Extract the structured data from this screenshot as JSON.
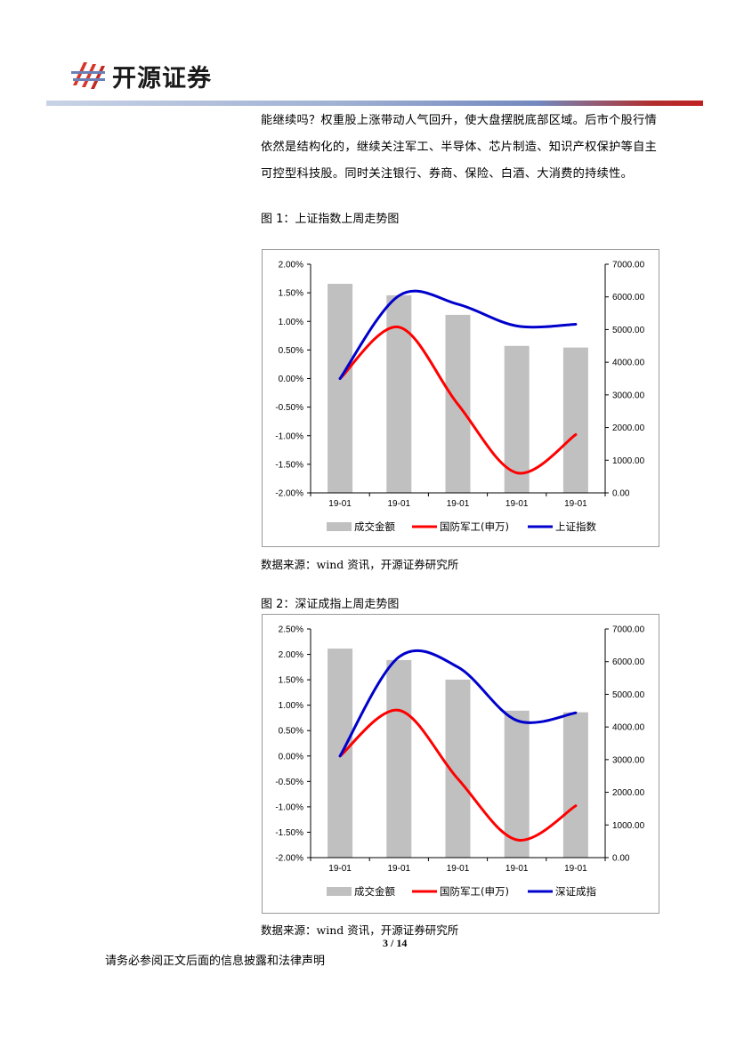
{
  "header": {
    "logo_text": "开源证券",
    "logo_icon": "kaiyuan-logo-icon"
  },
  "body": {
    "lines": [
      "能继续吗？权重股上涨带动人气回升，使大盘摆脱底部区域。后市个股行情",
      "依然是结构化的，继续关注军工、半导体、芯片制造、知识产权保护等自主",
      "可控型科技股。同时关注银行、券商、保险、白酒、大消费的持续性。"
    ]
  },
  "figures": [
    {
      "title": "图 1：上证指数上周走势图",
      "source": "数据来源：wind 资讯，开源证券研究所"
    },
    {
      "title": "图 2：深证成指上周走势图",
      "source": "数据来源：wind 资讯，开源证券研究所"
    }
  ],
  "footer": {
    "page": "3 / 14",
    "disclaimer": "请务必参阅正文后面的信息披露和法律声明"
  },
  "colors": {
    "bar": "#c0c0c0",
    "defense": "#ff0000",
    "index": "#0000cc"
  },
  "chart_data": [
    {
      "type": "bar+line",
      "categories": [
        "19-01",
        "19-01",
        "19-01",
        "19-01",
        "19-01"
      ],
      "y_left": {
        "ticks": [
          "2.00%",
          "1.50%",
          "1.00%",
          "0.50%",
          "0.00%",
          "-0.50%",
          "-1.00%",
          "-1.50%",
          "-2.00%"
        ],
        "min": -2.0,
        "max": 2.0
      },
      "y_right": {
        "ticks": [
          "7000.00",
          "6000.00",
          "5000.00",
          "4000.00",
          "3000.00",
          "2000.00",
          "1000.00",
          "0.00"
        ],
        "min": 0,
        "max": 7000
      },
      "series": [
        {
          "name": "成交金额",
          "kind": "bar",
          "axis": "right",
          "values": [
            6400,
            6050,
            5450,
            4500,
            4450
          ]
        },
        {
          "name": "国防军工(申万)",
          "kind": "line",
          "axis": "left",
          "values": [
            0.0,
            0.9,
            -0.45,
            -1.65,
            -0.98
          ]
        },
        {
          "name": "上证指数",
          "kind": "line",
          "axis": "left",
          "values": [
            0.0,
            1.45,
            1.3,
            0.92,
            0.95
          ]
        }
      ],
      "legend": "bottom"
    },
    {
      "type": "bar+line",
      "categories": [
        "19-01",
        "19-01",
        "19-01",
        "19-01",
        "19-01"
      ],
      "y_left": {
        "ticks": [
          "2.50%",
          "2.00%",
          "1.50%",
          "1.00%",
          "0.50%",
          "0.00%",
          "-0.50%",
          "-1.00%",
          "-1.50%",
          "-2.00%"
        ],
        "min": -2.0,
        "max": 2.5
      },
      "y_right": {
        "ticks": [
          "7000.00",
          "6000.00",
          "5000.00",
          "4000.00",
          "3000.00",
          "2000.00",
          "1000.00",
          "0.00"
        ],
        "min": 0,
        "max": 7000
      },
      "series": [
        {
          "name": "成交金额",
          "kind": "bar",
          "axis": "right",
          "values": [
            6400,
            6050,
            5450,
            4500,
            4450
          ]
        },
        {
          "name": "国防军工(申万)",
          "kind": "line",
          "axis": "left",
          "values": [
            0.0,
            0.9,
            -0.45,
            -1.65,
            -0.98
          ]
        },
        {
          "name": "深证成指",
          "kind": "line",
          "axis": "left",
          "values": [
            0.0,
            1.95,
            1.75,
            0.7,
            0.85
          ]
        }
      ],
      "legend": "bottom"
    }
  ]
}
